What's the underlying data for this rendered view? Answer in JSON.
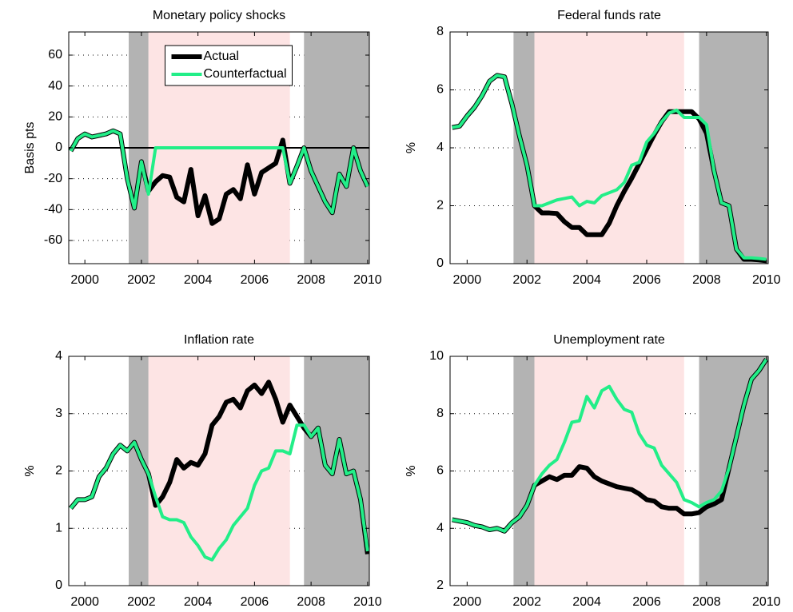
{
  "chart_data": [
    {
      "type": "line",
      "title": "Monetary policy shocks",
      "ylabel": "Basis pts",
      "x": [
        1999.5,
        1999.75,
        2000,
        2000.25,
        2000.5,
        2000.75,
        2001,
        2001.25,
        2001.5,
        2001.75,
        2002,
        2002.25,
        2002.5,
        2002.75,
        2003,
        2003.25,
        2003.5,
        2003.75,
        2004,
        2004.25,
        2004.5,
        2004.75,
        2005,
        2005.25,
        2005.5,
        2005.75,
        2006,
        2006.25,
        2006.5,
        2006.75,
        2007,
        2007.25,
        2007.5,
        2007.75,
        2008,
        2008.25,
        2008.5,
        2008.75,
        2009,
        2009.25,
        2009.5,
        2009.75,
        2010
      ],
      "series": [
        {
          "name": "Actual",
          "color": "#000000",
          "values": [
            -2,
            6,
            9,
            7,
            8,
            9,
            11,
            9,
            -20,
            -39,
            -9,
            -28,
            -22,
            -18,
            -19,
            -32,
            -35,
            -14,
            -44,
            -31,
            -49,
            -46,
            -30,
            -27,
            -33,
            -11,
            -30,
            -16,
            -13,
            -10,
            5,
            -23,
            -12,
            0,
            -15,
            -25,
            -35,
            -42,
            -17,
            -25,
            0,
            -15,
            -25
          ]
        },
        {
          "name": "Counterfactual",
          "color": "#22ee88",
          "values": [
            -2,
            6,
            9,
            7,
            8,
            9,
            11,
            9,
            -20,
            -39,
            -9,
            -30,
            0,
            0,
            0,
            0,
            0,
            0,
            0,
            0,
            0,
            0,
            0,
            0,
            0,
            0,
            0,
            0,
            0,
            0,
            0,
            -23,
            -12,
            0,
            -15,
            -25,
            -35,
            -42,
            -17,
            -25,
            0,
            -15,
            -25
          ]
        }
      ],
      "xlim": [
        1999.43,
        2010.06
      ],
      "xticks": [
        2000,
        2002,
        2004,
        2006,
        2008,
        2010
      ],
      "ylim": [
        -75,
        75
      ],
      "yticks": [
        -60,
        -40,
        -20,
        0,
        20,
        40,
        60
      ],
      "grid": true,
      "hline": 0,
      "legend": "upper center",
      "shaded_regions": [
        {
          "start": 2001.55,
          "end": 2002.25,
          "color": "#b3b3b3"
        },
        {
          "start": 2002.25,
          "end": 2007.25,
          "color": "#fde4e4"
        },
        {
          "start": 2007.75,
          "end": 2010.06,
          "color": "#b3b3b3"
        }
      ]
    },
    {
      "type": "line",
      "title": "Federal funds rate",
      "ylabel": "%",
      "x": [
        1999.5,
        1999.75,
        2000,
        2000.25,
        2000.5,
        2000.75,
        2001,
        2001.25,
        2001.5,
        2001.75,
        2002,
        2002.25,
        2002.5,
        2002.75,
        2003,
        2003.25,
        2003.5,
        2003.75,
        2004,
        2004.25,
        2004.5,
        2004.75,
        2005,
        2005.25,
        2005.5,
        2005.75,
        2006,
        2006.25,
        2006.5,
        2006.75,
        2007,
        2007.25,
        2007.5,
        2007.75,
        2008,
        2008.25,
        2008.5,
        2008.75,
        2009,
        2009.25,
        2009.5,
        2009.75,
        2010
      ],
      "series": [
        {
          "color": "#000000",
          "values": [
            4.7,
            4.75,
            5.1,
            5.4,
            5.8,
            6.3,
            6.5,
            6.45,
            5.5,
            4.4,
            3.4,
            2.0,
            1.75,
            1.75,
            1.73,
            1.45,
            1.25,
            1.25,
            1.0,
            1.0,
            1.0,
            1.4,
            2.0,
            2.5,
            2.95,
            3.45,
            3.95,
            4.45,
            4.9,
            5.25,
            5.25,
            5.25,
            5.25,
            5.0,
            4.5,
            3.2,
            2.1,
            2.0,
            0.5,
            0.15,
            0.15,
            0.13,
            0.1
          ]
        },
        {
          "color": "#22ee88",
          "values": [
            4.7,
            4.75,
            5.1,
            5.4,
            5.8,
            6.3,
            6.5,
            6.45,
            5.5,
            4.4,
            3.4,
            2.0,
            2.0,
            2.1,
            2.2,
            2.25,
            2.3,
            2.0,
            2.15,
            2.1,
            2.35,
            2.45,
            2.55,
            2.8,
            3.4,
            3.5,
            4.2,
            4.5,
            4.9,
            5.2,
            5.3,
            5.05,
            5.05,
            5.05,
            4.8,
            3.2,
            2.1,
            2.0,
            0.5,
            0.2,
            0.2,
            0.18,
            0.15
          ]
        }
      ],
      "xlim": [
        1999.43,
        2010.06
      ],
      "xticks": [
        2000,
        2002,
        2004,
        2006,
        2008,
        2010
      ],
      "ylim": [
        0,
        8
      ],
      "yticks": [
        0,
        2,
        4,
        6,
        8
      ],
      "grid": true,
      "shaded_regions": [
        {
          "start": 2001.55,
          "end": 2002.25,
          "color": "#b3b3b3"
        },
        {
          "start": 2002.25,
          "end": 2007.25,
          "color": "#fde4e4"
        },
        {
          "start": 2007.75,
          "end": 2010.06,
          "color": "#b3b3b3"
        }
      ]
    },
    {
      "type": "line",
      "title": "Inflation rate",
      "ylabel": "%",
      "x": [
        1999.5,
        1999.75,
        2000,
        2000.25,
        2000.5,
        2000.75,
        2001,
        2001.25,
        2001.5,
        2001.75,
        2002,
        2002.25,
        2002.5,
        2002.75,
        2003,
        2003.25,
        2003.5,
        2003.75,
        2004,
        2004.25,
        2004.5,
        2004.75,
        2005,
        2005.25,
        2005.5,
        2005.75,
        2006,
        2006.25,
        2006.5,
        2006.75,
        2007,
        2007.25,
        2007.5,
        2007.75,
        2008,
        2008.25,
        2008.5,
        2008.75,
        2009,
        2009.25,
        2009.5,
        2009.75,
        2010
      ],
      "series": [
        {
          "color": "#000000",
          "values": [
            1.35,
            1.5,
            1.5,
            1.55,
            1.9,
            2.05,
            2.3,
            2.45,
            2.35,
            2.5,
            2.2,
            1.95,
            1.4,
            1.55,
            1.8,
            2.2,
            2.05,
            2.15,
            2.1,
            2.3,
            2.8,
            2.95,
            3.2,
            3.25,
            3.1,
            3.4,
            3.5,
            3.35,
            3.55,
            3.25,
            2.85,
            3.15,
            2.95,
            2.75,
            2.6,
            2.75,
            2.1,
            1.95,
            2.55,
            1.95,
            2.0,
            1.5,
            0.55
          ]
        },
        {
          "color": "#22ee88",
          "values": [
            1.35,
            1.5,
            1.5,
            1.55,
            1.9,
            2.05,
            2.3,
            2.45,
            2.35,
            2.5,
            2.2,
            1.95,
            1.55,
            1.2,
            1.15,
            1.15,
            1.1,
            0.85,
            0.7,
            0.5,
            0.45,
            0.65,
            0.8,
            1.05,
            1.2,
            1.35,
            1.75,
            2.0,
            2.05,
            2.35,
            2.35,
            2.3,
            2.8,
            2.8,
            2.6,
            2.75,
            2.1,
            1.95,
            2.55,
            1.95,
            2.0,
            1.5,
            0.6
          ]
        }
      ],
      "xlim": [
        1999.43,
        2010.06
      ],
      "xticks": [
        2000,
        2002,
        2004,
        2006,
        2008,
        2010
      ],
      "ylim": [
        0,
        4
      ],
      "yticks": [
        0,
        1,
        2,
        3,
        4
      ],
      "grid": true,
      "shaded_regions": [
        {
          "start": 2001.55,
          "end": 2002.25,
          "color": "#b3b3b3"
        },
        {
          "start": 2002.25,
          "end": 2007.25,
          "color": "#fde4e4"
        },
        {
          "start": 2007.75,
          "end": 2010.06,
          "color": "#b3b3b3"
        }
      ]
    },
    {
      "type": "line",
      "title": "Unemployment rate",
      "ylabel": "%",
      "x": [
        1999.5,
        1999.75,
        2000,
        2000.25,
        2000.5,
        2000.75,
        2001,
        2001.25,
        2001.5,
        2001.75,
        2002,
        2002.25,
        2002.5,
        2002.75,
        2003,
        2003.25,
        2003.5,
        2003.75,
        2004,
        2004.25,
        2004.5,
        2004.75,
        2005,
        2005.25,
        2005.5,
        2005.75,
        2006,
        2006.25,
        2006.5,
        2006.75,
        2007,
        2007.25,
        2007.5,
        2007.75,
        2008,
        2008.25,
        2008.5,
        2008.75,
        2009,
        2009.25,
        2009.5,
        2009.75,
        2010
      ],
      "series": [
        {
          "color": "#000000",
          "values": [
            4.3,
            4.25,
            4.2,
            4.1,
            4.05,
            3.95,
            4.0,
            3.9,
            4.2,
            4.4,
            4.8,
            5.5,
            5.65,
            5.8,
            5.7,
            5.85,
            5.85,
            6.15,
            6.1,
            5.8,
            5.65,
            5.55,
            5.45,
            5.4,
            5.35,
            5.2,
            5.0,
            4.95,
            4.75,
            4.7,
            4.7,
            4.5,
            4.5,
            4.55,
            4.75,
            4.85,
            5.0,
            6.1,
            7.2,
            8.3,
            9.2,
            9.5,
            9.9
          ]
        },
        {
          "color": "#22ee88",
          "values": [
            4.3,
            4.25,
            4.2,
            4.1,
            4.05,
            3.95,
            4.0,
            3.9,
            4.2,
            4.4,
            4.8,
            5.5,
            5.9,
            6.2,
            6.4,
            7.0,
            7.7,
            7.75,
            8.6,
            8.2,
            8.8,
            8.95,
            8.5,
            8.15,
            8.05,
            7.3,
            6.9,
            6.8,
            6.2,
            5.9,
            5.6,
            5.0,
            4.9,
            4.75,
            4.9,
            5.0,
            5.3,
            6.1,
            7.2,
            8.3,
            9.2,
            9.5,
            9.9
          ]
        }
      ],
      "xlim": [
        1999.43,
        2010.06
      ],
      "xticks": [
        2000,
        2002,
        2004,
        2006,
        2008,
        2010
      ],
      "ylim": [
        2,
        10
      ],
      "yticks": [
        2,
        4,
        6,
        8,
        10
      ],
      "grid": true,
      "shaded_regions": [
        {
          "start": 2001.55,
          "end": 2002.25,
          "color": "#b3b3b3"
        },
        {
          "start": 2002.25,
          "end": 2007.25,
          "color": "#fde4e4"
        },
        {
          "start": 2007.75,
          "end": 2010.06,
          "color": "#b3b3b3"
        }
      ]
    }
  ]
}
